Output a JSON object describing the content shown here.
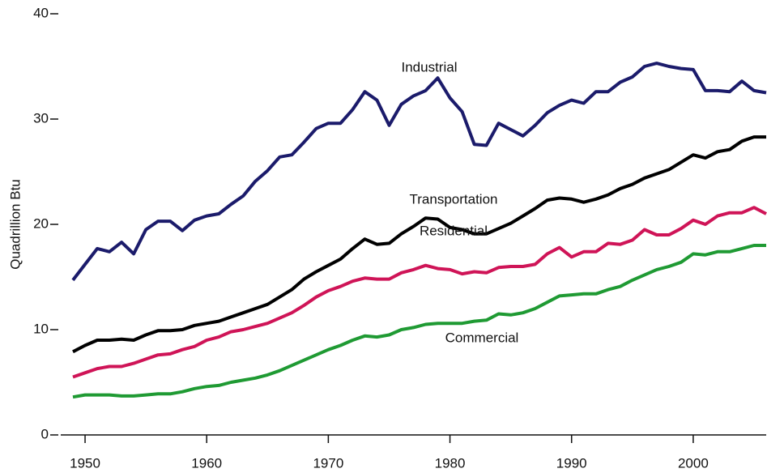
{
  "chart_data": {
    "type": "line",
    "y_label": "Quadrillion Btu",
    "x": [
      1949,
      1950,
      1951,
      1952,
      1953,
      1954,
      1955,
      1956,
      1957,
      1958,
      1959,
      1960,
      1961,
      1962,
      1963,
      1964,
      1965,
      1966,
      1967,
      1968,
      1969,
      1970,
      1971,
      1972,
      1973,
      1974,
      1975,
      1976,
      1977,
      1978,
      1979,
      1980,
      1981,
      1982,
      1983,
      1984,
      1985,
      1986,
      1987,
      1988,
      1989,
      1990,
      1991,
      1992,
      1993,
      1994,
      1995,
      1996,
      1997,
      1998,
      1999,
      2000,
      2001,
      2002,
      2003,
      2004,
      2005,
      2006
    ],
    "series": [
      {
        "name": "Industrial",
        "color": "#1b1b6b",
        "values": [
          14.7,
          16.2,
          17.7,
          17.4,
          18.3,
          17.2,
          19.5,
          20.3,
          20.3,
          19.4,
          20.4,
          20.8,
          21.0,
          21.9,
          22.7,
          24.1,
          25.1,
          26.4,
          26.6,
          27.8,
          29.1,
          29.6,
          29.6,
          30.9,
          32.6,
          31.8,
          29.4,
          31.4,
          32.2,
          32.7,
          33.9,
          32.0,
          30.7,
          27.6,
          27.5,
          29.6,
          29.0,
          28.4,
          29.4,
          30.6,
          31.3,
          31.8,
          31.5,
          32.6,
          32.6,
          33.5,
          34.0,
          35.0,
          35.3,
          35.0,
          34.8,
          34.7,
          32.7,
          32.7,
          32.6,
          33.6,
          32.7,
          32.5
        ]
      },
      {
        "name": "Transportation",
        "color": "#000000",
        "values": [
          7.9,
          8.5,
          9.0,
          9.0,
          9.1,
          9.0,
          9.5,
          9.9,
          9.9,
          10.0,
          10.4,
          10.6,
          10.8,
          11.2,
          11.6,
          12.0,
          12.4,
          13.1,
          13.8,
          14.8,
          15.5,
          16.1,
          16.7,
          17.7,
          18.6,
          18.1,
          18.2,
          19.1,
          19.8,
          20.6,
          20.5,
          19.7,
          19.5,
          19.1,
          19.1,
          19.6,
          20.1,
          20.8,
          21.5,
          22.3,
          22.5,
          22.4,
          22.1,
          22.4,
          22.8,
          23.4,
          23.8,
          24.4,
          24.8,
          25.2,
          25.9,
          26.6,
          26.3,
          26.9,
          27.1,
          27.9,
          28.3,
          28.3
        ]
      },
      {
        "name": "Residential",
        "color": "#cf1457",
        "values": [
          5.5,
          5.9,
          6.3,
          6.5,
          6.5,
          6.8,
          7.2,
          7.6,
          7.7,
          8.1,
          8.4,
          9.0,
          9.3,
          9.8,
          10.0,
          10.3,
          10.6,
          11.1,
          11.6,
          12.3,
          13.1,
          13.7,
          14.1,
          14.6,
          14.9,
          14.8,
          14.8,
          15.4,
          15.7,
          16.1,
          15.8,
          15.7,
          15.3,
          15.5,
          15.4,
          15.9,
          16.0,
          16.0,
          16.2,
          17.2,
          17.8,
          16.9,
          17.4,
          17.4,
          18.2,
          18.1,
          18.5,
          19.5,
          19.0,
          19.0,
          19.6,
          20.4,
          20.0,
          20.8,
          21.1,
          21.1,
          21.6,
          21.0
        ]
      },
      {
        "name": "Commercial",
        "color": "#1f9a33",
        "values": [
          3.6,
          3.8,
          3.8,
          3.8,
          3.7,
          3.7,
          3.8,
          3.9,
          3.9,
          4.1,
          4.4,
          4.6,
          4.7,
          5.0,
          5.2,
          5.4,
          5.7,
          6.1,
          6.6,
          7.1,
          7.6,
          8.1,
          8.5,
          9.0,
          9.4,
          9.3,
          9.5,
          10.0,
          10.2,
          10.5,
          10.6,
          10.6,
          10.6,
          10.8,
          10.9,
          11.5,
          11.4,
          11.6,
          12.0,
          12.6,
          13.2,
          13.3,
          13.4,
          13.4,
          13.8,
          14.1,
          14.7,
          15.2,
          15.7,
          16.0,
          16.4,
          17.2,
          17.1,
          17.4,
          17.4,
          17.7,
          18.0,
          18.0
        ]
      }
    ],
    "xlim": [
      1948,
      2006
    ],
    "xticks": [
      1950,
      1960,
      1970,
      1980,
      1990,
      2000
    ],
    "ylim": [
      0,
      40
    ],
    "yticks": [
      0,
      10,
      20,
      30,
      40
    ]
  }
}
